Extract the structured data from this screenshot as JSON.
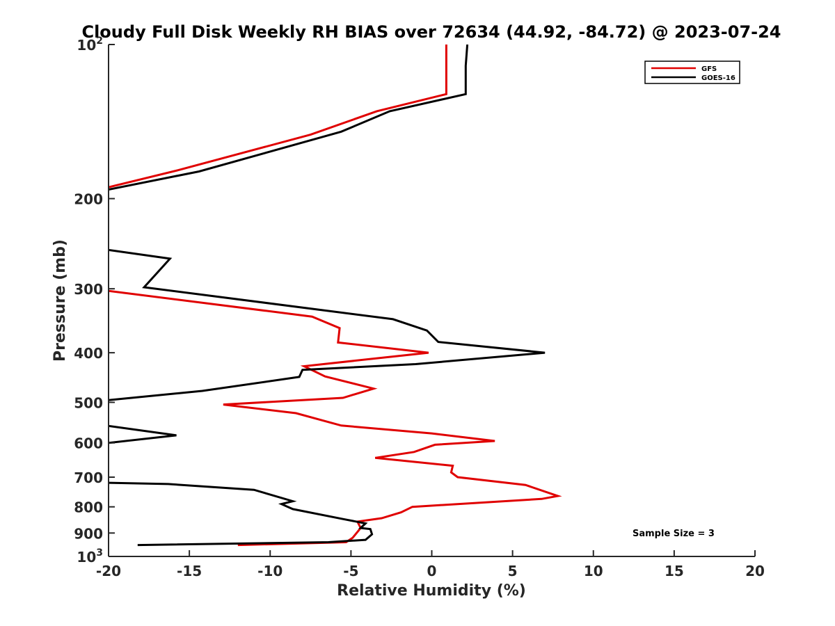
{
  "chart_data": {
    "type": "line",
    "title": "Cloudy Full Disk Weekly RH BIAS over 72634 (44.92, -84.72) @ 2023-07-24",
    "xlabel": "Relative Humidity (%)",
    "ylabel": "Pressure (mb)",
    "xlim": [
      -20,
      20
    ],
    "ylim": [
      100,
      1000
    ],
    "yscale": "log",
    "yreversed": true,
    "grid": false,
    "legend_position": "top-right",
    "xticks": [
      -20,
      -15,
      -10,
      -5,
      0,
      5,
      10,
      15,
      20
    ],
    "xtick_labels": [
      "-20",
      "-15",
      "-10",
      "-5",
      "0",
      "5",
      "10",
      "15",
      "20"
    ],
    "yticks": [
      100,
      200,
      300,
      400,
      500,
      600,
      700,
      800,
      900,
      1000
    ],
    "ytick_labels": [
      {
        "base": "10",
        "exp": "2"
      },
      {
        "base": "200",
        "exp": ""
      },
      {
        "base": "300",
        "exp": ""
      },
      {
        "base": "400",
        "exp": ""
      },
      {
        "base": "500",
        "exp": ""
      },
      {
        "base": "600",
        "exp": ""
      },
      {
        "base": "700",
        "exp": ""
      },
      {
        "base": "800",
        "exp": ""
      },
      {
        "base": "900",
        "exp": ""
      },
      {
        "base": "10",
        "exp": "3"
      }
    ],
    "series": [
      {
        "name": "GFS",
        "color": "#e00000",
        "points": [
          [
            0.9,
            100
          ],
          [
            0.9,
            125
          ],
          [
            -3.4,
            135
          ],
          [
            -7.5,
            150
          ],
          [
            -15.7,
            176
          ],
          [
            -20,
            190
          ],
          [
            null,
            null
          ],
          [
            -20,
            303
          ],
          [
            -7.4,
            340
          ],
          [
            -5.7,
            358
          ],
          [
            -5.8,
            382
          ],
          [
            -0.2,
            400
          ],
          [
            -7.9,
            425
          ],
          [
            -6.6,
            445
          ],
          [
            -3.6,
            470
          ],
          [
            -5.5,
            490
          ],
          [
            -12.9,
            505
          ],
          [
            -8.4,
            525
          ],
          [
            -5.6,
            555
          ],
          [
            0.0,
            575
          ],
          [
            3.9,
            595
          ],
          [
            0.2,
            605
          ],
          [
            -1.1,
            625
          ],
          [
            -3.5,
            642
          ],
          [
            1.3,
            665
          ],
          [
            1.2,
            685
          ],
          [
            1.6,
            700
          ],
          [
            5.8,
            725
          ],
          [
            7.8,
            762
          ],
          [
            6.8,
            772
          ],
          [
            -1.2,
            800
          ],
          [
            -1.9,
            820
          ],
          [
            -3.1,
            842
          ],
          [
            -4.6,
            855
          ],
          [
            -4.4,
            880
          ],
          [
            -4.9,
            920
          ],
          [
            -5.3,
            938
          ],
          [
            -12.0,
            950
          ]
        ]
      },
      {
        "name": "GOES-16",
        "color": "#000000",
        "points": [
          [
            2.2,
            100
          ],
          [
            2.1,
            110
          ],
          [
            2.1,
            125
          ],
          [
            -2.6,
            135
          ],
          [
            -5.6,
            148
          ],
          [
            -14.4,
            177
          ],
          [
            -20,
            192
          ],
          [
            null,
            null
          ],
          [
            -20,
            252
          ],
          [
            -16.2,
            262
          ],
          [
            -17.8,
            298
          ],
          [
            -2.4,
            344
          ],
          [
            -0.3,
            362
          ],
          [
            0.4,
            381
          ],
          [
            7.0,
            400
          ],
          [
            -1.0,
            421
          ],
          [
            -8.0,
            432
          ],
          [
            -8.2,
            446
          ],
          [
            -14.2,
            475
          ],
          [
            -20,
            495
          ],
          [
            null,
            null
          ],
          [
            -20,
            556
          ],
          [
            -15.8,
            580
          ],
          [
            -20,
            600
          ],
          [
            null,
            null
          ],
          [
            -20,
            718
          ],
          [
            -16.3,
            722
          ],
          [
            -11.0,
            741
          ],
          [
            -8.6,
            780
          ],
          [
            -9.3,
            790
          ],
          [
            -8.6,
            808
          ],
          [
            -5.5,
            845
          ],
          [
            -4.1,
            862
          ],
          [
            -4.4,
            880
          ],
          [
            -3.8,
            884
          ],
          [
            -3.7,
            905
          ],
          [
            -4.1,
            928
          ],
          [
            -6.4,
            938
          ],
          [
            -18.2,
            950
          ]
        ]
      }
    ],
    "annotation": "Sample Size = 3"
  }
}
